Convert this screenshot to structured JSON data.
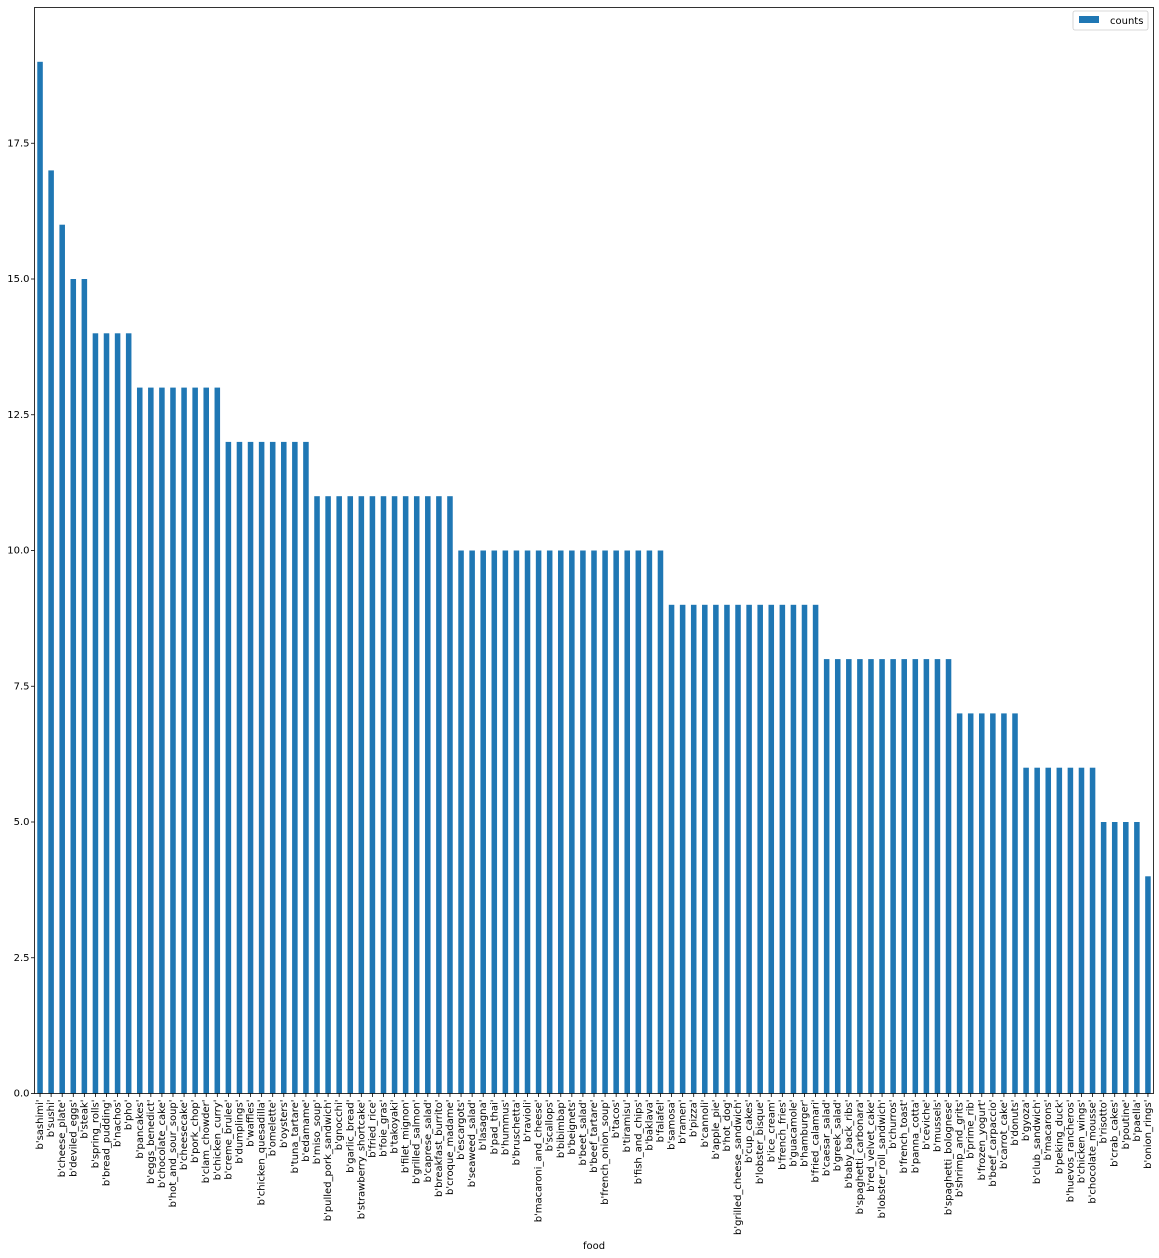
{
  "chart_data": {
    "type": "bar",
    "xlabel": "food",
    "ylabel": "",
    "ylim": [
      0,
      20
    ],
    "yticks": [
      "0.0",
      "2.5",
      "5.0",
      "7.5",
      "10.0",
      "12.5",
      "15.0",
      "17.5"
    ],
    "legend_position": "top-right",
    "grid": false,
    "series": [
      {
        "name": "counts",
        "color": "#1f77b4",
        "values": [
          19,
          17,
          16,
          15,
          15,
          14,
          14,
          14,
          14,
          13,
          13,
          13,
          13,
          13,
          13,
          13,
          13,
          12,
          12,
          12,
          12,
          12,
          12,
          12,
          12,
          11,
          11,
          11,
          11,
          11,
          11,
          11,
          11,
          11,
          11,
          11,
          11,
          11,
          10,
          10,
          10,
          10,
          10,
          10,
          10,
          10,
          10,
          10,
          10,
          10,
          10,
          10,
          10,
          10,
          10,
          10,
          10,
          9,
          9,
          9,
          9,
          9,
          9,
          9,
          9,
          9,
          9,
          9,
          9,
          9,
          9,
          8,
          8,
          8,
          8,
          8,
          8,
          8,
          8,
          8,
          8,
          8,
          8,
          7,
          7,
          7,
          7,
          7,
          7,
          6,
          6,
          6,
          6,
          6,
          6,
          6,
          5,
          5,
          5,
          5,
          4
        ]
      }
    ],
    "categories": [
      "b'sashimi'",
      "b'sushi'",
      "b'cheese_plate'",
      "b'deviled_eggs'",
      "b'steak'",
      "b'spring_rolls'",
      "b'bread_pudding'",
      "b'nachos'",
      "b'pho'",
      "b'pancakes'",
      "b'eggs_benedict'",
      "b'chocolate_cake'",
      "b'hot_and_sour_soup'",
      "b'cheesecake'",
      "b'pork_chop'",
      "b'clam_chowder'",
      "b'chicken_curry'",
      "b'creme_brulee'",
      "b'dumplings'",
      "b'waffles'",
      "b'chicken_quesadilla'",
      "b'omelette'",
      "b'oysters'",
      "b'tuna_tartare'",
      "b'edamame'",
      "b'miso_soup'",
      "b'pulled_pork_sandwich'",
      "b'gnocchi'",
      "b'garlic_bread'",
      "b'strawberry_shortcake'",
      "b'fried_rice'",
      "b'foie_gras'",
      "b'takoyaki'",
      "b'filet_mignon'",
      "b'grilled_salmon'",
      "b'caprese_salad'",
      "b'breakfast_burrito'",
      "b'croque_madame'",
      "b'escargots'",
      "b'seaweed_salad'",
      "b'lasagna'",
      "b'pad_thai'",
      "b'hummus'",
      "b'bruschetta'",
      "b'ravioli'",
      "b'macaroni_and_cheese'",
      "b'scallops'",
      "b'bibimbap'",
      "b'beignets'",
      "b'beet_salad'",
      "b'beef_tartare'",
      "b'french_onion_soup'",
      "b'tacos'",
      "b'tiramisu'",
      "b'fish_and_chips'",
      "b'baklava'",
      "b'falafel'",
      "b'samosa'",
      "b'ramen'",
      "b'pizza'",
      "b'cannoli'",
      "b'apple_pie'",
      "b'hot_dog'",
      "b'grilled_cheese_sandwich'",
      "b'cup_cakes'",
      "b'lobster_bisque'",
      "b'ice_cream'",
      "b'french_fries'",
      "b'guacamole'",
      "b'hamburger'",
      "b'fried_calamari'",
      "b'caesar_salad'",
      "b'greek_salad'",
      "b'baby_back_ribs'",
      "b'spaghetti_carbonara'",
      "b'red_velvet_cake'",
      "b'lobster_roll_sandwich'",
      "b'churros'",
      "b'french_toast'",
      "b'panna_cotta'",
      "b'ceviche'",
      "b'mussels'",
      "b'spaghetti_bolognese'",
      "b'shrimp_and_grits'",
      "b'prime_rib'",
      "b'frozen_yogurt'",
      "b'beef_carpaccio'",
      "b'carrot_cake'",
      "b'donuts'",
      "b'gyoza'",
      "b'club_sandwich'",
      "b'macarons'",
      "b'peking_duck'",
      "b'huevos_rancheros'",
      "b'chicken_wings'",
      "b'chocolate_mousse'",
      "b'risotto'",
      "b'crab_cakes'",
      "b'poutine'",
      "b'paella'",
      "b'onion_rings'"
    ]
  }
}
